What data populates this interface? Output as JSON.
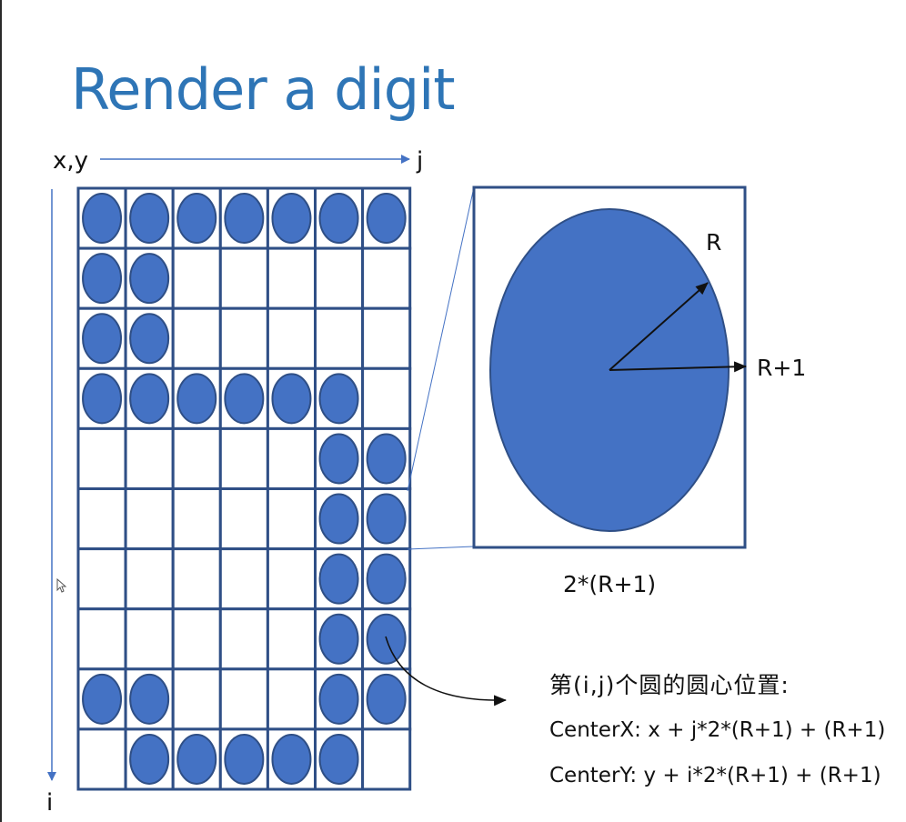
{
  "title": "Render a digit",
  "axes": {
    "origin_label": "x,y",
    "horizontal_label": "j",
    "vertical_label": "i"
  },
  "grid": {
    "rows": 10,
    "cols": 7,
    "pattern": [
      [
        1,
        1,
        1,
        1,
        1,
        1,
        1
      ],
      [
        1,
        1,
        0,
        0,
        0,
        0,
        0
      ],
      [
        1,
        1,
        0,
        0,
        0,
        0,
        0
      ],
      [
        1,
        1,
        1,
        1,
        1,
        1,
        0
      ],
      [
        0,
        0,
        0,
        0,
        0,
        1,
        1
      ],
      [
        0,
        0,
        0,
        0,
        0,
        1,
        1
      ],
      [
        0,
        0,
        0,
        0,
        0,
        1,
        1
      ],
      [
        0,
        0,
        0,
        0,
        0,
        1,
        1
      ],
      [
        1,
        1,
        0,
        0,
        0,
        1,
        1
      ],
      [
        0,
        1,
        1,
        1,
        1,
        1,
        0
      ]
    ]
  },
  "detail": {
    "radius_label": "R",
    "cell_half_label": "R+1",
    "cell_size_label": "2*(R+1)"
  },
  "formula": {
    "heading": "第(i,j)个圆的圆心位置:",
    "center_x": "CenterX: x + j*2*(R+1) + (R+1)",
    "center_y": "CenterY: y + i*2*(R+1) + (R+1)"
  },
  "colors": {
    "title": "#2e75b6",
    "circle_fill": "#4472c4",
    "circle_stroke": "#2f4f86",
    "grid_line": "#2f4f86",
    "axis": "#4472c4"
  }
}
